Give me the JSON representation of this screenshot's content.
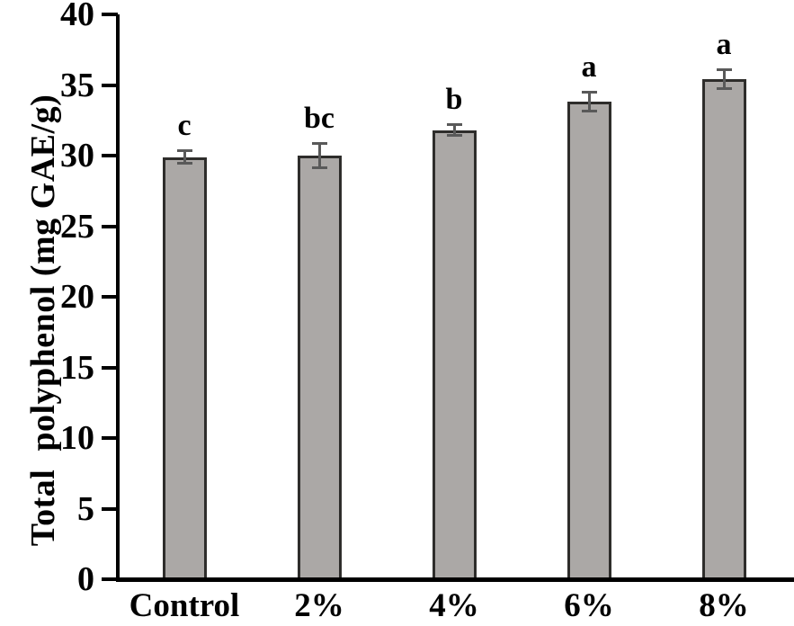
{
  "chart_data": {
    "type": "bar",
    "title": "",
    "xlabel": "",
    "ylabel": "Total  polyphenol (mg GAE/g)",
    "categories": [
      "Control",
      "2%",
      "4%",
      "6%",
      "8%"
    ],
    "values": [
      29.9,
      30.0,
      31.8,
      33.8,
      35.4
    ],
    "errors": [
      0.5,
      0.9,
      0.4,
      0.7,
      0.7
    ],
    "sig_letters": [
      "c",
      "bc",
      "b",
      "a",
      "a"
    ],
    "ylim": [
      0,
      40
    ],
    "yticks": [
      0,
      5,
      10,
      15,
      20,
      25,
      30,
      35,
      40
    ],
    "grid": false,
    "legend": null,
    "colors": {
      "bar_fill": "#aba8a6",
      "bar_border": "#2e2d2b",
      "error_bar": "#595959",
      "axis": "#000000",
      "text": "#000000"
    }
  }
}
